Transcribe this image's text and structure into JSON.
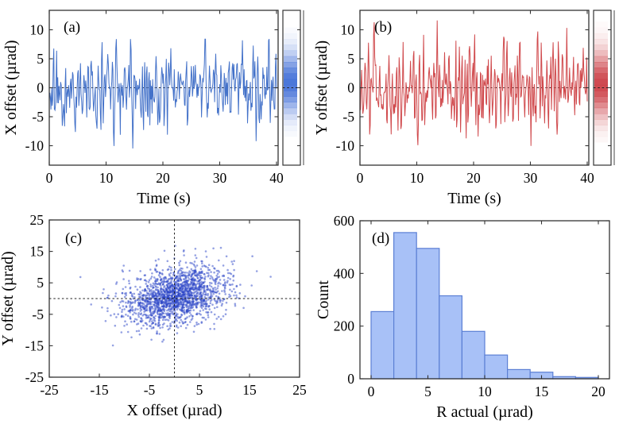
{
  "figure": {
    "background": "#ffffff",
    "text_color": "#000000",
    "axis_color": "#333333"
  },
  "chart_data": [
    {
      "id": "a",
      "type": "line",
      "panel_label": "(a)",
      "xlabel": "Time (s)",
      "ylabel": "X offset (µrad)",
      "xlim": [
        0,
        40.3
      ],
      "ylim": [
        -13.4,
        13.4
      ],
      "xticks": [
        0,
        10,
        20,
        30,
        40
      ],
      "yticks": [
        -10,
        -5,
        0,
        5,
        10
      ],
      "line_color": "#4472c9",
      "zero_line": {
        "y": 0,
        "style": "dashed",
        "color": "#222222"
      },
      "side_strip": {
        "kind": "marginal-density",
        "color": "#3c6bd6",
        "center": 0.9,
        "sigma": 3.5,
        "max_opacity": 0.92
      },
      "series": {
        "generator": "ar2-gaussian",
        "seed": 20231,
        "n": 400,
        "t_max": 40,
        "a1": 0.52,
        "a2": -0.33,
        "noise_sigma": 2.9,
        "clip": [
          -12.0,
          8.4
        ]
      }
    },
    {
      "id": "b",
      "type": "line",
      "panel_label": "(b)",
      "xlabel": "Time (s)",
      "ylabel": "Y offset (µrad)",
      "xlim": [
        0,
        40.3
      ],
      "ylim": [
        -13.4,
        13.4
      ],
      "xticks": [
        0,
        10,
        20,
        30,
        40
      ],
      "yticks": [
        -10,
        -5,
        0,
        5,
        10
      ],
      "line_color": "#d0494c",
      "zero_line": {
        "y": 0,
        "style": "dashed",
        "color": "#222222"
      },
      "side_strip": {
        "kind": "marginal-density",
        "color": "#c9353d",
        "center": 0.6,
        "sigma": 3.8,
        "max_opacity": 0.9
      },
      "series": {
        "generator": "ar2-gaussian",
        "seed": 47711,
        "n": 400,
        "t_max": 40,
        "a1": 0.45,
        "a2": -0.42,
        "noise_sigma": 3.3,
        "clip": [
          -13.2,
          11.6
        ]
      }
    },
    {
      "id": "c",
      "type": "scatter",
      "panel_label": "(c)",
      "xlabel": "X offset (µrad)",
      "ylabel": "Y offset (µrad)",
      "xlim": [
        -25,
        25
      ],
      "ylim": [
        -25,
        25
      ],
      "xticks": [
        -25,
        -15,
        -5,
        5,
        15,
        25
      ],
      "yticks": [
        -25,
        -15,
        -5,
        5,
        15,
        25
      ],
      "marker_color": "#2b46c8",
      "marker_opacity": 0.5,
      "marker_radius": 1.3,
      "crosshair": {
        "x": 0,
        "y": 0,
        "style": "dashed",
        "color": "#222222"
      },
      "points": {
        "generator": "bivariate-gaussian",
        "seed": 90917,
        "n": 1800,
        "mean": [
          0.3,
          0.8
        ],
        "sigma": [
          5.0,
          4.8
        ],
        "rho": 0.32,
        "clip": 24
      }
    },
    {
      "id": "d",
      "type": "histogram",
      "panel_label": "(d)",
      "xlabel": "R actual (µrad)",
      "ylabel": "Count",
      "xlim": [
        -1,
        21
      ],
      "ylim": [
        0,
        600
      ],
      "xticks": [
        0,
        5,
        10,
        15,
        20
      ],
      "yticks": [
        0,
        200,
        400,
        600
      ],
      "bar_fill": "#a8c1f7",
      "bar_stroke": "#5b7fd4",
      "bin_edges": [
        0,
        2,
        4,
        6,
        8,
        10,
        12,
        14,
        16,
        18,
        20
      ],
      "counts": [
        255,
        555,
        495,
        315,
        180,
        90,
        35,
        25,
        8,
        5
      ]
    }
  ]
}
